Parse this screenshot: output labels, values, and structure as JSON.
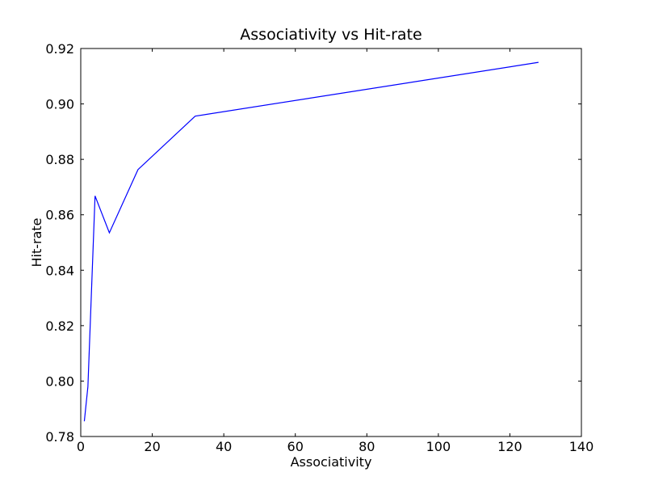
{
  "chart_data": {
    "type": "line",
    "title": "Associativity vs Hit-rate",
    "xlabel": "Associativity",
    "ylabel": "Hit-rate",
    "xlim": [
      0,
      140
    ],
    "ylim": [
      0.78,
      0.92
    ],
    "xticks": [
      "0",
      "20",
      "40",
      "60",
      "80",
      "100",
      "120",
      "140"
    ],
    "yticks": [
      "0.78",
      "0.80",
      "0.82",
      "0.84",
      "0.86",
      "0.88",
      "0.90",
      "0.92"
    ],
    "grid": false,
    "series": [
      {
        "color": "#0000ff",
        "x": [
          1,
          2,
          4,
          8,
          16,
          32,
          128
        ],
        "y": [
          0.7855,
          0.798,
          0.8668,
          0.8535,
          0.8763,
          0.8956,
          0.915
        ]
      }
    ]
  }
}
